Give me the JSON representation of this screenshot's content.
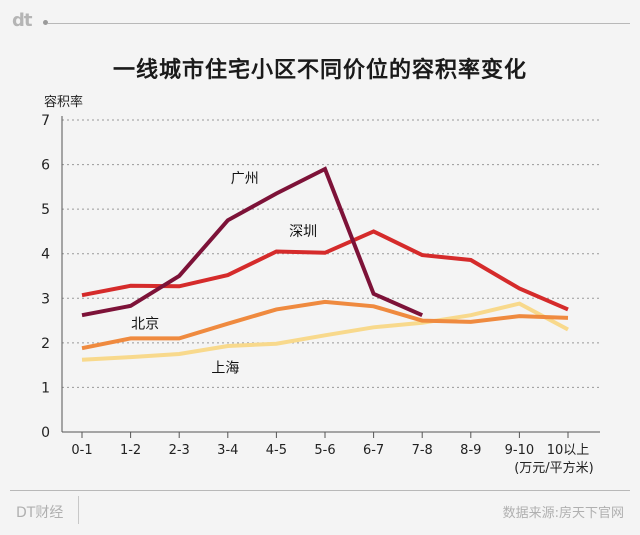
{
  "header": {
    "logo_text": "dt"
  },
  "title": "一线城市住宅小区不同价位的容积率变化",
  "footer": {
    "brand": "DT财经",
    "source": "数据来源:房天下官网"
  },
  "chart_data": {
    "type": "line",
    "title": "一线城市住宅小区不同价位的容积率变化",
    "ylabel": "容积率",
    "xlabel": "(万元/平方米)",
    "categories": [
      "0-1",
      "1-2",
      "2-3",
      "3-4",
      "4-5",
      "5-6",
      "6-7",
      "7-8",
      "8-9",
      "9-10",
      "10以上"
    ],
    "ylim": [
      0,
      7
    ],
    "yticks": [
      "0",
      "1",
      "2",
      "3",
      "4",
      "5",
      "6",
      "7"
    ],
    "grid": true,
    "series": [
      {
        "name": "广州",
        "color": "#7d1238",
        "values": [
          2.62,
          2.83,
          3.5,
          4.75,
          5.35,
          5.9,
          3.1,
          2.62,
          null,
          null,
          null
        ]
      },
      {
        "name": "深圳",
        "color": "#d52b2b",
        "values": [
          3.07,
          3.28,
          3.27,
          3.52,
          4.05,
          4.02,
          4.5,
          3.97,
          3.86,
          3.22,
          2.75
        ]
      },
      {
        "name": "北京",
        "color": "#ef8a3f",
        "values": [
          1.88,
          2.1,
          2.1,
          2.43,
          2.75,
          2.92,
          2.82,
          2.5,
          2.47,
          2.6,
          2.56
        ]
      },
      {
        "name": "上海",
        "color": "#f8d98c",
        "values": [
          1.62,
          1.68,
          1.75,
          1.93,
          1.98,
          2.17,
          2.35,
          2.45,
          2.62,
          2.88,
          2.3
        ]
      }
    ]
  }
}
